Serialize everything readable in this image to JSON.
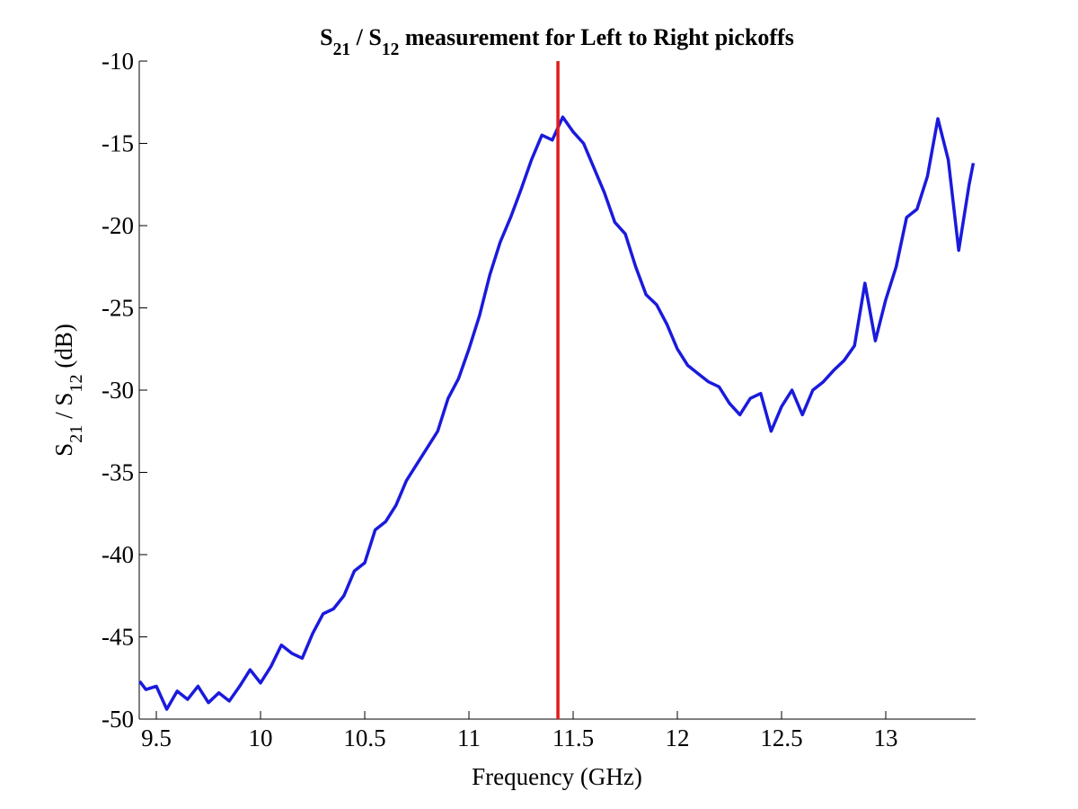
{
  "chart_data": {
    "type": "line",
    "title": [
      "S",
      "21",
      " / S",
      "12",
      " measurement for Left to Right pickoffs"
    ],
    "xlabel": "Frequency (GHz)",
    "ylabel": [
      "S",
      "21",
      " / S",
      "12",
      " (dB)"
    ],
    "xlim": [
      9.418,
      13.431
    ],
    "ylim": [
      -50,
      -10
    ],
    "xticks": [
      9.5,
      10,
      10.5,
      11,
      11.5,
      12,
      12.5,
      13
    ],
    "yticks": [
      -10,
      -15,
      -20,
      -25,
      -30,
      -35,
      -40,
      -45,
      -50
    ],
    "vline": {
      "x": 11.427,
      "color": "#e41a1a"
    },
    "x": [
      9.42,
      9.45,
      9.5,
      9.55,
      9.6,
      9.65,
      9.7,
      9.75,
      9.8,
      9.85,
      9.9,
      9.95,
      10.0,
      10.05,
      10.1,
      10.15,
      10.2,
      10.25,
      10.3,
      10.35,
      10.4,
      10.45,
      10.5,
      10.55,
      10.6,
      10.65,
      10.7,
      10.75,
      10.8,
      10.85,
      10.9,
      10.95,
      11.0,
      11.05,
      11.1,
      11.15,
      11.2,
      11.25,
      11.3,
      11.35,
      11.4,
      11.45,
      11.5,
      11.55,
      11.6,
      11.65,
      11.7,
      11.75,
      11.8,
      11.85,
      11.9,
      11.95,
      12.0,
      12.05,
      12.1,
      12.15,
      12.2,
      12.25,
      12.3,
      12.35,
      12.4,
      12.45,
      12.5,
      12.55,
      12.6,
      12.65,
      12.7,
      12.75,
      12.8,
      12.85,
      12.9,
      12.95,
      13.0,
      13.05,
      13.1,
      13.15,
      13.2,
      13.25,
      13.3,
      13.35,
      13.4,
      13.42
    ],
    "series": [
      {
        "color": "#1a1add",
        "values": [
          -47.7,
          -48.2,
          -48.0,
          -49.4,
          -48.3,
          -48.8,
          -48.0,
          -49.0,
          -48.4,
          -48.9,
          -48.0,
          -47.0,
          -47.8,
          -46.8,
          -45.5,
          -46.0,
          -46.3,
          -44.8,
          -43.6,
          -43.3,
          -42.5,
          -41.0,
          -40.5,
          -38.5,
          -38.0,
          -37.0,
          -35.5,
          -34.5,
          -33.5,
          -32.5,
          -30.5,
          -29.3,
          -27.5,
          -25.5,
          -23.0,
          -21.0,
          -19.5,
          -17.8,
          -16.0,
          -14.5,
          -14.8,
          -13.4,
          -14.3,
          -15.0,
          -16.5,
          -18.0,
          -19.8,
          -20.5,
          -22.5,
          -24.2,
          -24.8,
          -26.0,
          -27.5,
          -28.5,
          -29.0,
          -29.5,
          -29.8,
          -30.8,
          -31.5,
          -30.5,
          -30.2,
          -32.5,
          -31.0,
          -30.0,
          -31.5,
          -30.0,
          -29.5,
          -28.8,
          -28.2,
          -27.3,
          -23.5,
          -27.0,
          -24.5,
          -22.5,
          -19.5,
          -19.0,
          -17.0,
          -13.5,
          -16.0,
          -21.5,
          -17.5,
          -16.2
        ]
      }
    ]
  }
}
